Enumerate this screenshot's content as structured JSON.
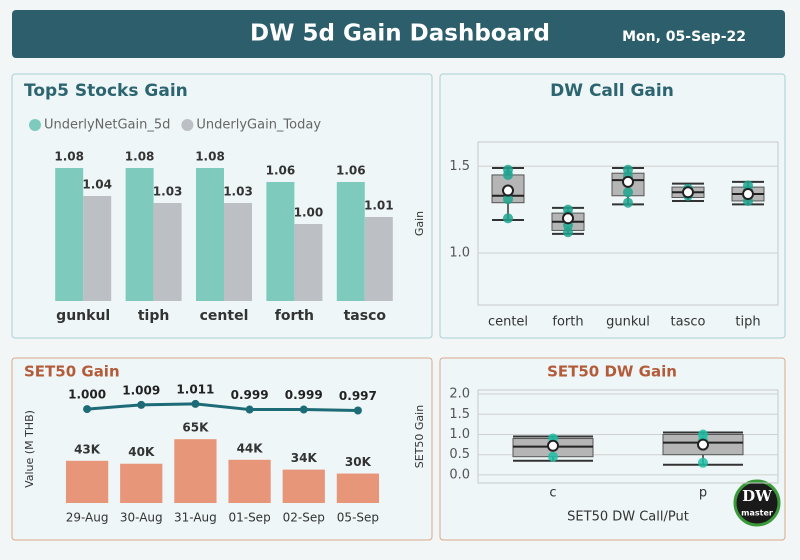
{
  "header": {
    "title": "DW 5d Gain Dashboard",
    "date": "Mon, 05-Sep-22"
  },
  "logo": {
    "title": "DW",
    "subtitle": "master"
  },
  "chart_data": [
    {
      "type": "bar",
      "title": "Top5 Stocks Gain",
      "categories": [
        "gunkul",
        "tiph",
        "centel",
        "forth",
        "tasco"
      ],
      "series": [
        {
          "name": "UnderlyNetGain_5d",
          "color": "#7ecbbd",
          "values": [
            1.08,
            1.08,
            1.08,
            1.06,
            1.06
          ],
          "value_labels": [
            "1.08",
            "1.08",
            "1.08",
            "1.06",
            "1.06"
          ]
        },
        {
          "name": "UnderlyGain_Today",
          "color": "#bcc0c4",
          "values": [
            1.04,
            1.03,
            1.03,
            1.0,
            1.01
          ],
          "value_labels": [
            "1.04",
            "1.03",
            "1.03",
            "1.00",
            "1.01"
          ]
        }
      ],
      "ylim": [
        0.89,
        1.1
      ]
    },
    {
      "type": "box",
      "title": "DW Call Gain",
      "ylabel": "Gain",
      "categories": [
        "centel",
        "forth",
        "gunkul",
        "tasco",
        "tiph"
      ],
      "boxes": [
        {
          "min": 1.19,
          "q1": 1.29,
          "median": 1.33,
          "q3": 1.45,
          "max": 1.49,
          "mean": 1.36,
          "points": [
            1.2,
            1.31,
            1.45,
            1.48
          ]
        },
        {
          "min": 1.11,
          "q1": 1.13,
          "median": 1.18,
          "q3": 1.23,
          "max": 1.26,
          "mean": 1.2,
          "points": [
            1.12,
            1.16,
            1.22,
            1.25
          ]
        },
        {
          "min": 1.28,
          "q1": 1.33,
          "median": 1.42,
          "q3": 1.46,
          "max": 1.49,
          "mean": 1.41,
          "points": [
            1.29,
            1.35,
            1.44,
            1.48
          ]
        },
        {
          "min": 1.3,
          "q1": 1.32,
          "median": 1.35,
          "q3": 1.38,
          "max": 1.4,
          "mean": 1.35,
          "points": [
            1.33,
            1.37
          ]
        },
        {
          "min": 1.28,
          "q1": 1.3,
          "median": 1.34,
          "q3": 1.38,
          "max": 1.41,
          "mean": 1.34,
          "points": [
            1.3,
            1.36,
            1.39
          ]
        }
      ],
      "ylim": [
        0.7,
        1.64
      ],
      "yticks": [
        {
          "value": 1,
          "label": "1.0"
        },
        {
          "value": 1.5,
          "label": "1.5"
        }
      ],
      "grid": true,
      "box_color": "#b5b5b5",
      "point_color": "#1fa58f"
    },
    {
      "type": "bar",
      "title": "SET50 Gain",
      "ylabel": "Value (M THB)",
      "categories": [
        "29-Aug",
        "30-Aug",
        "31-Aug",
        "01-Sep",
        "02-Sep",
        "05-Sep"
      ],
      "series": [
        {
          "color": "#e8967a",
          "values": [
            43000,
            40000,
            65000,
            44000,
            34000,
            30000
          ],
          "value_labels": [
            "43K",
            "40K",
            "65K",
            "44K",
            "34K",
            "30K"
          ]
        },
        {
          "type": "line",
          "axis": "y2",
          "color": "#1e6b78",
          "values": [
            1.0,
            1.009,
            1.011,
            0.999,
            0.999,
            0.997
          ],
          "value_labels": [
            "1.000",
            "1.009",
            "1.011",
            "0.999",
            "0.999",
            "0.997"
          ]
        }
      ],
      "ylim": [
        0,
        110000
      ],
      "y2lim": [
        0.8,
        1.03
      ]
    },
    {
      "type": "box",
      "title": "SET50 DW Gain",
      "ylabel": "SET50 Gain",
      "xlabel": "SET50 DW Call/Put",
      "categories": [
        "c",
        "p"
      ],
      "boxes": [
        {
          "min": 0.35,
          "q1": 0.45,
          "median": 0.7,
          "q3": 0.9,
          "max": 0.95,
          "mean": 0.72,
          "points": [
            0.45,
            0.75,
            0.9
          ]
        },
        {
          "min": 0.25,
          "q1": 0.5,
          "median": 0.8,
          "q3": 1.0,
          "max": 1.05,
          "mean": 0.75,
          "points": [
            0.3,
            0.85,
            1.0
          ]
        }
      ],
      "ylim": [
        -0.2,
        2.1
      ],
      "yticks": [
        {
          "value": 0,
          "label": "0.0"
        },
        {
          "value": 0.5,
          "label": "0.5"
        },
        {
          "value": 1,
          "label": "1.0"
        },
        {
          "value": 1.5,
          "label": "1.5"
        },
        {
          "value": 2,
          "label": "2.0"
        }
      ],
      "grid": true,
      "box_color": "#b5b5b5",
      "point_color": "#1fbfa5"
    }
  ]
}
